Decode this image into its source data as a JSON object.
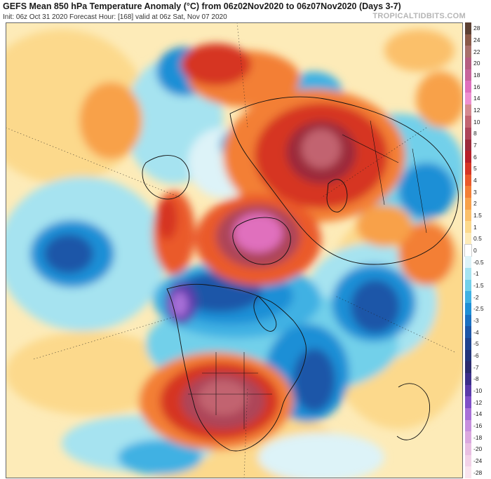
{
  "header": {
    "title": "GEFS Mean 850 hPa Temperature Anomaly (°C) from 06z02Nov2020 to 06z07Nov2020 (Days 3-7)",
    "subtitle": "Init: 06z Oct 31 2020   Forecast Hour: [168]   valid at 06z Sat, Nov 07 2020",
    "brand": "TROPICALTIDBITS.COM"
  },
  "legend": {
    "levels": [
      {
        "label": "28",
        "color": "#5c4033"
      },
      {
        "label": "24",
        "color": "#8a5a48"
      },
      {
        "label": "22",
        "color": "#a8706a"
      },
      {
        "label": "20",
        "color": "#b55d80"
      },
      {
        "label": "18",
        "color": "#c8649b"
      },
      {
        "label": "16",
        "color": "#e06fbd"
      },
      {
        "label": "14",
        "color": "#ee8fd0"
      },
      {
        "label": "12",
        "color": "#d4898f"
      },
      {
        "label": "10",
        "color": "#c26470"
      },
      {
        "label": "8",
        "color": "#ad4458"
      },
      {
        "label": "7",
        "color": "#9c2a3a"
      },
      {
        "label": "6",
        "color": "#b82028"
      },
      {
        "label": "5",
        "color": "#d63624"
      },
      {
        "label": "4",
        "color": "#ea5a2a"
      },
      {
        "label": "3",
        "color": "#f37f35"
      },
      {
        "label": "2",
        "color": "#f8a14a"
      },
      {
        "label": "1.5",
        "color": "#fbc06a"
      },
      {
        "label": "1",
        "color": "#fcd98c"
      },
      {
        "label": "0.5",
        "color": "#fdebb8"
      },
      {
        "label": "0",
        "color": "#ffffff"
      },
      {
        "label": "-0.5",
        "color": "#ddf3f8"
      },
      {
        "label": "-1",
        "color": "#a6e3f0"
      },
      {
        "label": "-1.5",
        "color": "#72d0ea"
      },
      {
        "label": "-2",
        "color": "#3fb1e3"
      },
      {
        "label": "-2.5",
        "color": "#1e8fd6"
      },
      {
        "label": "-3",
        "color": "#1a70c2"
      },
      {
        "label": "-4",
        "color": "#1c56a8"
      },
      {
        "label": "-5",
        "color": "#1e438f"
      },
      {
        "label": "-6",
        "color": "#22347a"
      },
      {
        "label": "-7",
        "color": "#2a2a6e"
      },
      {
        "label": "-8",
        "color": "#3b2e8a"
      },
      {
        "label": "-10",
        "color": "#5a3aaa"
      },
      {
        "label": "-12",
        "color": "#7f4fc8"
      },
      {
        "label": "-14",
        "color": "#a86fd8"
      },
      {
        "label": "-16",
        "color": "#c78fde"
      },
      {
        "label": "-18",
        "color": "#dba8df"
      },
      {
        "label": "-20",
        "color": "#e9bfe2"
      },
      {
        "label": "-24",
        "color": "#f2d2e8"
      },
      {
        "label": "-28",
        "color": "#f9e4ef"
      }
    ]
  }
}
